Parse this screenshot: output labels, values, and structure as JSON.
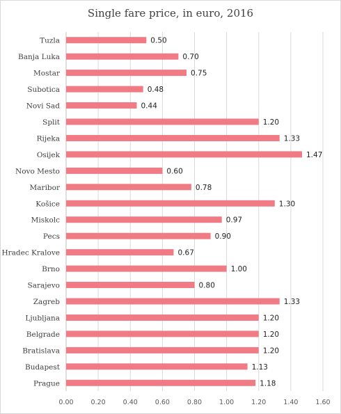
{
  "chart_data": {
    "type": "bar",
    "orientation": "horizontal",
    "title": "Single fare price, in euro, 2016",
    "xlabel": "",
    "ylabel": "",
    "categories": [
      "Tuzla",
      "Banja Luka",
      "Mostar",
      "Subotica",
      "Novi Sad",
      "Split",
      "Rijeka",
      "Osijek",
      "Novo Mesto",
      "Maribor",
      "Košice",
      "Miskolc",
      "Pecs",
      "Hradec Kralove",
      "Brno",
      "Sarajevo",
      "Zagreb",
      "Ljubljana",
      "Belgrade",
      "Bratislava",
      "Budapest",
      "Prague"
    ],
    "values": [
      0.5,
      0.7,
      0.75,
      0.48,
      0.44,
      1.2,
      1.33,
      1.47,
      0.6,
      0.78,
      1.3,
      0.97,
      0.9,
      0.67,
      1.0,
      0.8,
      1.33,
      1.2,
      1.2,
      1.2,
      1.13,
      1.18
    ],
    "value_labels": [
      "0.50",
      "0.70",
      "0.75",
      "0.48",
      "0.44",
      "1.20",
      "1.33",
      "1.47",
      "0.60",
      "0.78",
      "1.30",
      "0.97",
      "0.90",
      "0.67",
      "1.00",
      "0.80",
      "1.33",
      "1.20",
      "1.20",
      "1.20",
      "1.13",
      "1.18"
    ],
    "xlim": [
      0,
      1.6
    ],
    "ticks": [
      0,
      0.2,
      0.4,
      0.6,
      0.8,
      1.0,
      1.2,
      1.4,
      1.6
    ],
    "tick_labels": [
      "0.00",
      "0.20",
      "0.40",
      "0.60",
      "0.80",
      "1.00",
      "1.20",
      "1.40",
      "1.60"
    ],
    "grid": true,
    "legend": "none",
    "bar_color": "#f07b84"
  }
}
